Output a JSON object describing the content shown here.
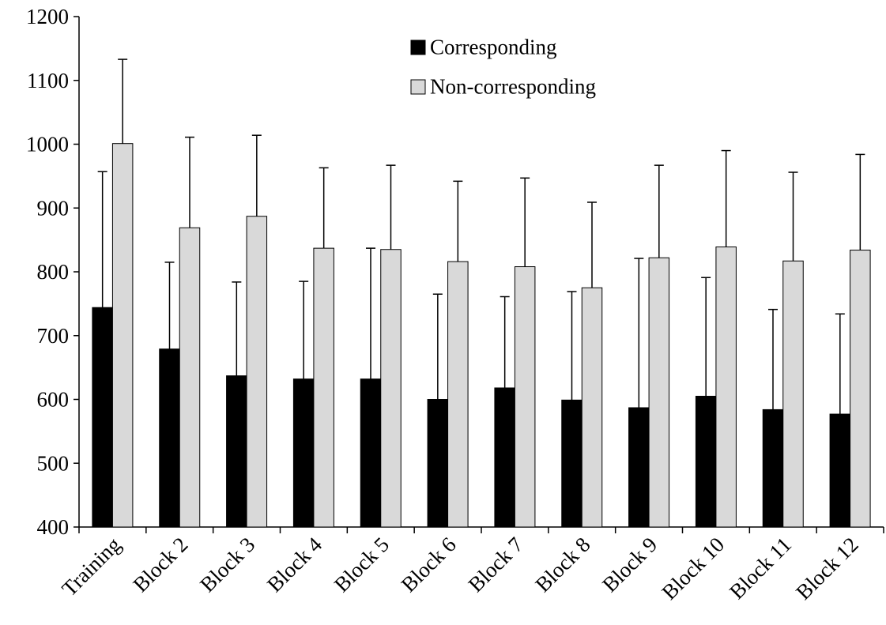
{
  "chart_data": {
    "type": "bar",
    "title": "",
    "xlabel": "",
    "ylabel": "",
    "ylim": [
      400,
      1200
    ],
    "yticks": [
      400,
      500,
      600,
      700,
      800,
      900,
      1000,
      1100,
      1200
    ],
    "grid": false,
    "legend_position": "top-center",
    "categories": [
      "Training",
      "Block 2",
      "Block 3",
      "Block 4",
      "Block 5",
      "Block 6",
      "Block 7",
      "Block 8",
      "Block 9",
      "Block 10",
      "Block 11",
      "Block 12"
    ],
    "series": [
      {
        "name": "Corresponding",
        "color": "#000000",
        "values": [
          744,
          679,
          637,
          632,
          632,
          600,
          618,
          599,
          587,
          605,
          584,
          577
        ],
        "error_upper": [
          957,
          815,
          784,
          785,
          837,
          765,
          761,
          769,
          821,
          791,
          741,
          734
        ]
      },
      {
        "name": "Non-corresponding",
        "color": "#d9d9d9",
        "values": [
          1001,
          869,
          887,
          837,
          835,
          816,
          808,
          775,
          822,
          839,
          817,
          834
        ],
        "error_upper": [
          1133,
          1011,
          1014,
          963,
          967,
          942,
          947,
          909,
          967,
          990,
          956,
          984
        ]
      }
    ]
  }
}
